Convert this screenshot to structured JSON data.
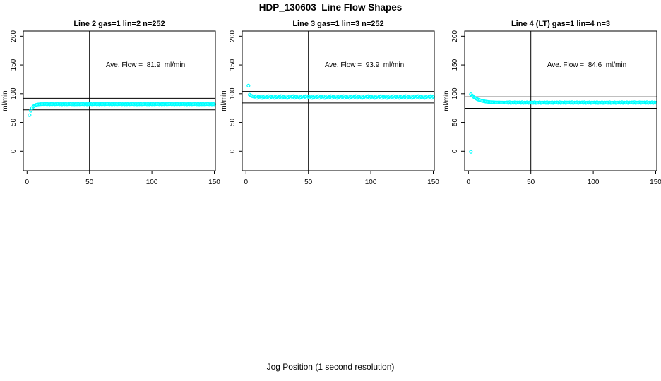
{
  "figure": {
    "title": "HDP_130603  Line Flow Shapes",
    "xlabel": "Jog Position (1 second resolution)"
  },
  "colors": {
    "marker": "#00ffff",
    "axis": "#000000",
    "text": "#000000",
    "background": "#ffffff"
  },
  "chart_data": [
    {
      "type": "scatter",
      "title": "Line 2 gas=1 lin=2 n=252",
      "annotation": "Ave. Flow =  81.9  ml/min",
      "ave_flow_ml_min": 81.9,
      "ylabel": "ml/min",
      "x_ticks": [
        0,
        50,
        100,
        150
      ],
      "y_ticks": [
        0,
        50,
        100,
        150,
        200
      ],
      "xlim": [
        -3,
        150.85
      ],
      "ylim": [
        -34,
        209
      ],
      "vline_x": 50,
      "hlines": [
        91.9,
        71.9
      ],
      "marker": "open-circle",
      "series": {
        "x_start": 2,
        "x_step": 1,
        "y": [
          62.7,
          70.3,
          74.9,
          77.7,
          79.4,
          80.4,
          81.0,
          81.4,
          81.6,
          81.8,
          81.9,
          81.9,
          81.9,
          82.2,
          81.6,
          82.4,
          81.5,
          82.1,
          81.7,
          82.3,
          81.6,
          82.0,
          81.9,
          82.2,
          81.6,
          82.4,
          81.5,
          82.1,
          81.7,
          82.3,
          81.6,
          82.0,
          81.9,
          82.2,
          81.6,
          82.4,
          81.5,
          82.1,
          81.7,
          82.3,
          81.6,
          82.0,
          81.9,
          82.2,
          81.6,
          82.4,
          81.5,
          82.1,
          81.7,
          82.3,
          81.6,
          82.0,
          81.9,
          82.2,
          81.6,
          82.4,
          81.5,
          82.1,
          81.7,
          82.3,
          81.6,
          82.0,
          81.9,
          82.2,
          81.6,
          82.4,
          81.5,
          82.1,
          81.7,
          82.3,
          81.6,
          82.0,
          81.9,
          82.2,
          81.6,
          82.4,
          81.5,
          82.1,
          81.7,
          82.3,
          81.6,
          82.0,
          81.9,
          82.2,
          81.6,
          82.4,
          81.5,
          82.1,
          81.7,
          82.3,
          81.6,
          82.0,
          81.9,
          82.2,
          81.6,
          82.4,
          81.5,
          82.1,
          81.7,
          82.3,
          81.6,
          82.0,
          81.9,
          82.2,
          81.6,
          82.4,
          81.5,
          82.1,
          81.7,
          82.3,
          81.6,
          82.0,
          81.9,
          82.2,
          81.6,
          82.4,
          81.5,
          82.1,
          81.7,
          82.3,
          81.6,
          82.0,
          81.9,
          82.2,
          81.6,
          82.4,
          81.5,
          82.1,
          81.7,
          82.3,
          81.6,
          82.0,
          81.9,
          82.2,
          81.6,
          82.4,
          81.5,
          82.1,
          81.7,
          82.3,
          81.6,
          82.0,
          81.9,
          82.2,
          81.6,
          82.4,
          81.5,
          82.1,
          81.7
        ]
      },
      "extra_points": []
    },
    {
      "type": "scatter",
      "title": "Line 3 gas=1 lin=3 n=252",
      "annotation": "Ave. Flow =  93.9  ml/min",
      "ave_flow_ml_min": 93.9,
      "ylabel": "ml/min",
      "x_ticks": [
        0,
        50,
        100,
        150
      ],
      "y_ticks": [
        0,
        50,
        100,
        150,
        200
      ],
      "xlim": [
        -3,
        150.85
      ],
      "ylim": [
        -34,
        209
      ],
      "vline_x": 50,
      "hlines": [
        103.9,
        83.9
      ],
      "marker": "open-circle",
      "series": {
        "x_start": 2,
        "x_step": 1,
        "y": [
          114.0,
          98.3,
          96.8,
          95.8,
          95.1,
          94.7,
          95.8,
          92.9,
          94.5,
          93.3,
          95.2,
          92.7,
          94.0,
          95.5,
          93.0,
          94.7,
          95.8,
          92.9,
          94.5,
          93.3,
          95.2,
          92.7,
          94.0,
          95.5,
          93.0,
          94.7,
          95.8,
          92.9,
          94.5,
          93.3,
          95.2,
          92.7,
          94.0,
          95.5,
          93.0,
          94.7,
          95.8,
          92.9,
          94.5,
          93.3,
          95.2,
          92.7,
          94.0,
          95.5,
          93.0,
          94.7,
          95.8,
          92.9,
          94.5,
          93.3,
          95.2,
          92.7,
          94.0,
          95.5,
          93.0,
          94.7,
          95.8,
          92.9,
          94.5,
          93.3,
          95.2,
          92.7,
          94.0,
          95.5,
          93.0,
          94.7,
          95.8,
          92.9,
          94.5,
          93.3,
          95.2,
          92.7,
          94.0,
          95.5,
          93.0,
          94.7,
          95.8,
          92.9,
          94.5,
          93.3,
          95.2,
          92.7,
          94.0,
          95.5,
          93.0,
          94.7,
          95.8,
          92.9,
          94.5,
          93.3,
          95.2,
          92.7,
          94.0,
          95.5,
          93.0,
          94.7,
          95.8,
          92.9,
          94.5,
          93.3,
          95.2,
          92.7,
          94.0,
          95.5,
          93.0,
          94.7,
          95.8,
          92.9,
          94.5,
          93.3,
          95.2,
          92.7,
          94.0,
          95.5,
          93.0,
          94.7,
          95.8,
          92.9,
          94.5,
          93.3,
          95.2,
          92.7,
          94.0,
          95.5,
          93.0,
          94.7,
          95.8,
          92.9,
          94.5,
          93.3,
          95.2,
          92.7,
          94.0,
          95.5,
          93.0,
          94.7,
          95.8,
          92.9,
          94.5,
          93.3,
          95.2,
          92.7,
          94.0,
          95.5,
          93.0,
          94.7,
          95.8,
          92.9,
          94.5
        ]
      },
      "extra_points": []
    },
    {
      "type": "scatter",
      "title": "Line 4 (LT) gas=1 lin=4 n=3",
      "annotation": "Ave. Flow =  84.6  ml/min",
      "ave_flow_ml_min": 84.6,
      "ylabel": "ml/min",
      "x_ticks": [
        0,
        50,
        100,
        150
      ],
      "y_ticks": [
        0,
        50,
        100,
        150,
        200
      ],
      "xlim": [
        -3,
        150.85
      ],
      "ylim": [
        -34,
        209
      ],
      "vline_x": 50,
      "hlines": [
        94.6,
        74.6
      ],
      "marker": "open-circle",
      "series": {
        "x_start": 2,
        "x_step": 1,
        "y": [
          99.0,
          96.7,
          94.8,
          93.2,
          91.8,
          90.7,
          89.7,
          88.9,
          88.2,
          87.6,
          87.1,
          86.7,
          86.3,
          86.0,
          85.7,
          85.5,
          85.3,
          85.2,
          85.0,
          84.9,
          84.8,
          84.8,
          84.7,
          84.7,
          84.6,
          84.6,
          84.5,
          84.5,
          84.5,
          84.9,
          84.1,
          85.2,
          83.9,
          84.6,
          84.3,
          85.0,
          84.0,
          84.7,
          84.4,
          84.9,
          84.1,
          85.2,
          83.9,
          84.6,
          84.3,
          85.0,
          84.0,
          84.7,
          84.4,
          84.9,
          84.1,
          85.2,
          83.9,
          84.6,
          84.3,
          85.0,
          84.0,
          84.7,
          84.4,
          84.9,
          84.1,
          85.2,
          83.9,
          84.6,
          84.3,
          85.0,
          84.0,
          84.7,
          84.4,
          84.9,
          84.1,
          85.2,
          83.9,
          84.6,
          84.3,
          85.0,
          84.0,
          84.7,
          84.4,
          84.9,
          84.1,
          85.2,
          83.9,
          84.6,
          84.3,
          85.0,
          84.0,
          84.7,
          84.4,
          84.9,
          84.1,
          85.2,
          83.9,
          84.6,
          84.3,
          85.0,
          84.0,
          84.7,
          84.4,
          84.9,
          84.1,
          85.2,
          83.9,
          84.6,
          84.3,
          85.0,
          84.0,
          84.7,
          84.4,
          84.9,
          84.1,
          85.2,
          83.9,
          84.6,
          84.3,
          85.0,
          84.0,
          84.7,
          84.4,
          84.9,
          84.1,
          85.2,
          83.9,
          84.6,
          84.3,
          85.0,
          84.0,
          84.7,
          84.4,
          84.9,
          84.1,
          85.2,
          83.9,
          84.6,
          84.3,
          85.0,
          84.0,
          84.7,
          84.4,
          84.9,
          84.1,
          85.2,
          83.9,
          84.6,
          84.3,
          85.0,
          84.0,
          84.7,
          84.4
        ]
      },
      "extra_points": [
        [
          2,
          -1
        ]
      ]
    }
  ]
}
